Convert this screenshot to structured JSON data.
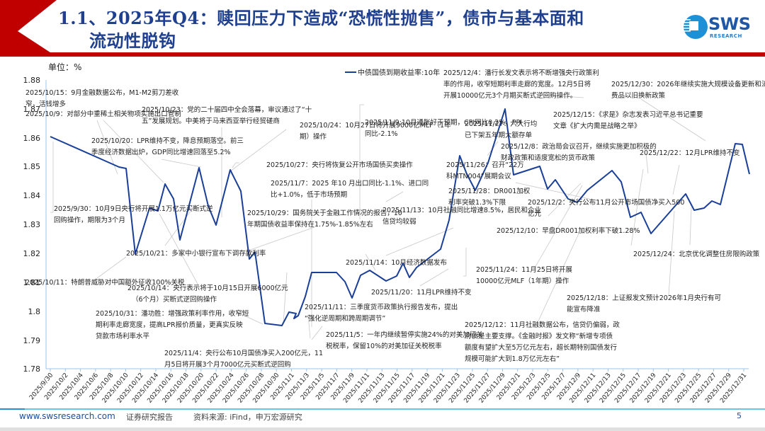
{
  "header": {
    "title_line1": "1.1、2025年Q4：赎回压力下造成“恐慌性抛售”，债市与基本面和",
    "title_line2": "流动性脱钩",
    "logo_text": "SWS",
    "logo_sub": "RESEARCH",
    "accent_color": "#c00000",
    "title_color": "#1f3f8f"
  },
  "chart": {
    "unit_label": "单位：%",
    "legend_label": "中债国债到期收益率:10年",
    "line_color": "#1a3f99"
  },
  "chart_data": {
    "type": "line",
    "title": "",
    "xlabel": "",
    "ylabel": "单位：%",
    "ylim": [
      1.78,
      1.88
    ],
    "yticks": [
      "1.88",
      "1.87",
      "1.86",
      "1.85",
      "1.84",
      "1.83",
      "1.82",
      "1.81",
      "1.8",
      "1.79",
      "1.78"
    ],
    "xticks": [
      "2025/9/30",
      "2025/10/2",
      "2025/10/4",
      "2025/10/6",
      "2025/10/8",
      "2025/10/10",
      "2025/10/12",
      "2025/10/14",
      "2025/10/16",
      "2025/10/18",
      "2025/10/20",
      "2025/10/22",
      "2025/10/24",
      "2025/10/26",
      "2025/10/28",
      "2025/10/30",
      "2025/11/1",
      "2025/11/3",
      "2025/11/5",
      "2025/11/7",
      "2025/11/9",
      "2025/11/11",
      "2025/11/13",
      "2025/11/15",
      "2025/11/17",
      "2025/11/19",
      "2025/11/21",
      "2025/11/23",
      "2025/11/25",
      "2025/11/27",
      "2025/11/29",
      "2025/12/1",
      "2025/12/3",
      "2025/12/5",
      "2025/12/7",
      "2025/12/9",
      "2025/12/11",
      "2025/12/13",
      "2025/12/15",
      "2025/12/17",
      "2025/12/19",
      "2025/12/21",
      "2025/12/23",
      "2025/12/25",
      "2025/12/27",
      "2025/12/29",
      "2025/12/31"
    ],
    "grid": false,
    "legend_position": "top-center",
    "series": [
      {
        "name": "中债国债到期收益率:10年",
        "x": [
          "2025/9/30",
          "2025/10/9",
          "2025/10/10",
          "2025/10/11",
          "2025/10/13",
          "2025/10/14",
          "2025/10/15",
          "2025/10/16",
          "2025/10/17",
          "2025/10/20",
          "2025/10/21",
          "2025/10/22",
          "2025/10/23",
          "2025/10/24",
          "2025/10/27",
          "2025/10/28",
          "2025/10/29",
          "2025/10/30",
          "2025/10/31",
          "2025/11/3",
          "2025/11/4",
          "2025/11/5",
          "2025/11/6",
          "2025/11/7",
          "2025/11/10",
          "2025/11/11",
          "2025/11/12",
          "2025/11/13",
          "2025/11/14",
          "2025/11/17",
          "2025/11/18",
          "2025/11/19",
          "2025/11/20",
          "2025/11/21",
          "2025/11/24",
          "2025/11/25",
          "2025/11/26",
          "2025/11/27",
          "2025/11/28",
          "2025/12/1",
          "2025/12/2",
          "2025/12/3",
          "2025/12/4",
          "2025/12/5",
          "2025/12/8",
          "2025/12/9",
          "2025/12/10",
          "2025/12/11",
          "2025/12/12",
          "2025/12/15",
          "2025/12/16",
          "2025/12/17",
          "2025/12/18",
          "2025/12/19",
          "2025/12/22",
          "2025/12/23",
          "2025/12/24",
          "2025/12/25",
          "2025/12/26",
          "2025/12/29",
          "2025/12/30",
          "2025/12/31"
        ],
        "values": [
          1.8605,
          1.8465,
          1.846,
          1.821,
          1.838,
          1.8368,
          1.8448,
          1.8408,
          1.8248,
          1.8497,
          1.8355,
          1.8293,
          1.8485,
          1.8422,
          1.818,
          1.8205,
          1.7955,
          1.795,
          1.799,
          1.8,
          1.798,
          1.8005,
          1.8,
          1.8,
          1.805,
          1.8145,
          1.8145,
          1.8065,
          1.81,
          1.8125,
          1.811,
          1.8162,
          1.8107,
          1.8128,
          1.8215,
          1.833,
          1.8545,
          1.847,
          1.843,
          1.854,
          1.87,
          1.848,
          1.849,
          1.842,
          1.8435,
          1.84,
          1.8395,
          1.844,
          1.8487,
          1.8465,
          1.835,
          1.8357,
          1.8312,
          1.841,
          1.835,
          1.8353,
          1.8375,
          1.837,
          1.846,
          1.858,
          1.8578,
          1.847
        ]
      }
    ],
    "annotations": [
      "2025/10/15：9月金融数据公布，M1-M2剪刀差收窄，活钱增多",
      "2025/10/9：对部分中重稀土相关物项实施出口管制",
      "2025/10/23：党的二十届四中全会落幕，审议通过了“十五五”发展规划。中美将于马来西亚举行经贸磋商",
      "2025/10/20：LPR维持不变，降息预期落空。前三季度经济数据出炉，GDP同比增速回落至5.2%",
      "2025/9/30：10月9日央行将开展1.1万亿元买断式逆回购操作，期限为3个月",
      "2025/10/21：多家中小银行宣布下调存款利率",
      "2025/10/11：特朗普威胁对中国额外征收100%关税",
      "2025/10/14：央行表示将于10月15日开展6000亿元（6个月）买断式逆回购操作",
      "2025/10/31：潘功胜：增强政策利率作用，收窄短期利率走廊宽度，提高LPR报价质量，更真实反映贷款市场利率水平",
      "2025/11/4：央行公布10月国债净买入200亿元，11月5日将开展3个月7000亿元买断式逆回购",
      "2025/10/24：10月27日将开展9000亿MLF（1年期）操作",
      "2025/10/27：央行将恢复公开市场国债买卖操作",
      "2025/11/7：2025年10月出口同比-1.1%、进口同比+1.0%，低于市场预期",
      "2025/10/29：国务院关于金融工作情况的报告，10年期国债收益率保持在1.75%-1.85%左右",
      "2025/11/9:10月通胀好于预期，CPI同比0.2%、PPI同比-2.1%",
      "2025/11/13：10月社融同比增速8.5%，居民和企业信贷均较弱",
      "2025/11/14：10月经济数据发布",
      "2025/11/20：11月LPR维持不变",
      "2025/11/11：三季度货币政策执行报告发布，提出“强化逆周期和跨周期调节”",
      "2025/11/5：一年内继续暂停实施24%的对美加征关税税率，保留10%的对美加征关税税率",
      "2025/12/4：潘行长发文表示将不断增强央行政策利率的作用，收窄短期利率走廊的宽度。12月5日将开展10000亿元3个月期买断式逆回购操作。",
      "2025/11/27：六大行均已下架五年期大额存单",
      "2025/12/8：政治局会议召开，继续实施更加积极的财政政策和适度宽松的货币政策",
      "2025/11/26：召开“22万科MTN004”展期会议",
      "2025/11/28：DR001加权利率突破1.3%下限",
      "2025/12/2：央行公布11月公开市场国债净买入500亿元",
      "2025/12/10：早盘DR001加权利率下破1.28%",
      "2025/11/24：11月25日将开展10000亿元MLF（1年期）操作",
      "2025/12/12：11月社融数据公布，信贷仍偏弱，政府债是主要支撑。《金融时报》发文称“新增专项债额度有望扩大至5万亿元左右，超长期特别国债发行规模可能扩大到1.8万亿元左右”",
      "2025/12/30：2026年继续实施大规模设备更新和消费品以旧换新政策",
      "2025/12/15：《求是》杂志发表习近平总书记重要文章《扩大内需是战略之举》",
      "2025/12/22：12月LPR维持不变",
      "2025/12/24：北京优化调整住房限购政策",
      "2025/12/18：上证报发文预计2026年1月央行有可能宣布降准"
    ]
  },
  "annotations": {
    "a1015_l1": "2025/10/15：9月金融数据公布，M1-M2剪刀差收",
    "a1015_l2": "窄，活钱增多",
    "a1009": "2025/10/9：对部分中重稀土相关物项实施出口管制",
    "a1023_l1": "2025/10/23：党的二十届四中全会落幕，审议通过了“十",
    "a1023_l2": "五”发展规划。中美将于马来西亚举行经贸磋商",
    "a1020_l1": "2025/10/20：LPR维持不变，降息预期落空。前三",
    "a1020_l2": "季度经济数据出炉，GDP同比增速回落至5.2%",
    "a0930_l1": "2025/9/30：10月9日央行将开展1.1万亿元买断式逆",
    "a0930_l2": "回购操作，期限为3个月",
    "a1021": "2025/10/21：多家中小银行宣布下调存款利率",
    "a1011": "2025/10/11：特朗普威胁对中国额外征收100%关税",
    "a1014_l1": "2025/10/14：央行表示将于10月15日开展6000亿元",
    "a1014_l2": "（6个月）买断式逆回购操作",
    "a1031_l1": "2025/10/31：潘功胜：增强政策利率作用，收窄短",
    "a1031_l2": "期利率走廊宽度，提高LPR报价质量，更真实反映",
    "a1031_l3": "贷款市场利率水平",
    "a1104_l1": "2025/11/4：央行公布10月国债净买入200亿元，11",
    "a1104_l2": "月5日将开展3个月7000亿元买断式逆回购",
    "a1024_l1": "2025/10/24：10月27日将开展9000亿MLF（1年",
    "a1024_l2": "期）操作",
    "a1027": "2025/10/27：央行将恢复公开市场国债买卖操作",
    "a1107_l1": "2025/11/7：2025 年10 月出口同比-1.1%、进口同",
    "a1107_l2": "比+1.0%，低于市场预期",
    "a1029_l1": "2025/10/29：国务院关于金融工作情况的报告，10",
    "a1029_l2": "年期国债收益率保持在1.75%-1.85%左右",
    "a1109_l1": "2025/11/9:10月通胀好于预期，CPI同比0.2%、PPI",
    "a1109_l2": "同比-2.1%",
    "a1113_l1": "2025/11/13：10月社融同比增速8.5%，居民和企业",
    "a1113_l2": "信贷均较弱",
    "a1114": "2025/11/14：10月经济数据发布",
    "a1120": "2025/11/20：11月LPR维持不变",
    "a1111_l1": "2025/11/11：三季度货币政策执行报告发布，提出",
    "a1111_l2": "“强化逆周期和跨周期调节”",
    "a1105_l1": "2025/11/5：一年内继续暂停实施24%的对美加征关",
    "a1105_l2": "税税率，保留10%的对美加征关税税率",
    "a1204_l1": "2025/12/4：潘行长发文表示将不断增强央行政策利",
    "a1204_l2": "率的作用，收窄短期利率走廊的宽度。12月5日将",
    "a1204_l3": "开展10000亿元3个月期买断式逆回购操作。",
    "a1127_l1": "2025/11/27：六大行均",
    "a1127_l2": "已下架五年期大额存单",
    "a1208_l1": "2025/12/8：政治局会议召开，继续实施更加积极的",
    "a1208_l2": "财政政策和适度宽松的货币政策",
    "a1126_l1": "2025/11/26：召开“22万",
    "a1126_l2": "科MTN004”展期会议",
    "a1128_l1": "2025/11/28：DR001加权",
    "a1128_l2": "利率突破1.3%下限",
    "a1202_l1": "2025/12/2：央行公布11月公开市场国债净买入500",
    "a1202_l2": "亿元",
    "a1210": "2025/12/10：早盘DR001加权利率下破1.28%",
    "a1124_l1": "2025/11/24：11月25日将开展",
    "a1124_l2": "10000亿元MLF（1年期）操作",
    "a1212_l1": "2025/12/12：11月社融数据公布，信贷仍偏弱，政",
    "a1212_l2": "府债是主要支撑。《金融时报》发文称“新增专项债",
    "a1212_l3": "额度有望扩大至5万亿元左右，超长期特别国债发行",
    "a1212_l4": "规模可能扩大到1.8万亿元左右”",
    "a1230_l1": "2025/12/30：2026年继续实施大规模设备更新和消",
    "a1230_l2": "费品以旧换新政策",
    "a1215_l1": "2025/12/15：《求是》杂志发表习近平总书记重要",
    "a1215_l2": "文章《扩大内需是战略之举》",
    "a1222": "2025/12/22：12月LPR维持不变",
    "a1224": "2025/12/24：北京优化调整住房限购政策",
    "a1218_l1": "2025/12/18：上证报发文预计2026年1月央行有可",
    "a1218_l2": "能宣布降准"
  },
  "footer": {
    "url": "www.swsresearch.com",
    "report_label": "证券研究报告",
    "source": "资料来源: iFind，申万宏源研究",
    "page_number": "5"
  }
}
